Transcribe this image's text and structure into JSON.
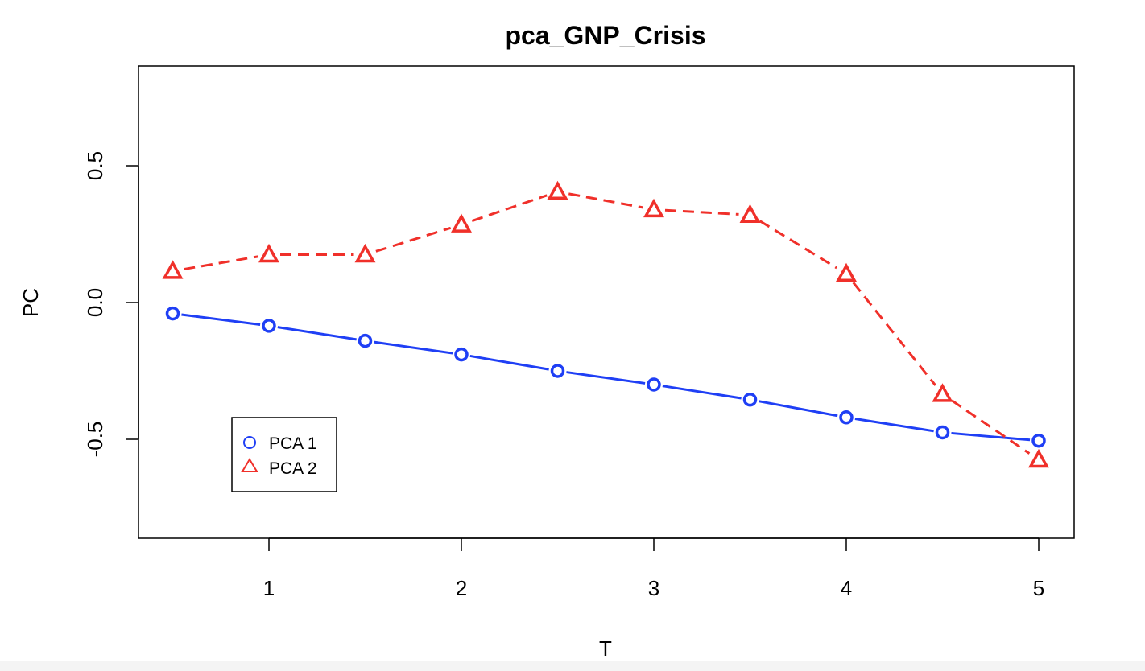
{
  "chart_data": {
    "type": "line",
    "title": "pca_GNP_Crisis",
    "xlabel": "T",
    "ylabel": "PC",
    "xlim": [
      0.5,
      5
    ],
    "ylim": [
      -0.87,
      0.87
    ],
    "x_ticks": [
      "1",
      "2",
      "3",
      "4",
      "5"
    ],
    "x_tick_values": [
      1,
      2,
      3,
      4,
      5
    ],
    "y_ticks": [
      "-0.5",
      "0.0",
      "0.5"
    ],
    "y_tick_values": [
      -0.5,
      0.0,
      0.5
    ],
    "x": [
      0.5,
      1.0,
      1.5,
      2.0,
      2.5,
      3.0,
      3.5,
      4.0,
      4.5,
      5.0
    ],
    "grid": false,
    "legend_position": "bottom-left",
    "series": [
      {
        "name": "PCA 1",
        "values": [
          -0.04,
          -0.085,
          -0.14,
          -0.19,
          -0.25,
          -0.3,
          -0.355,
          -0.42,
          -0.475,
          -0.505
        ],
        "color": "#1f3ff5",
        "marker": "circle",
        "line_style": "solid"
      },
      {
        "name": "PCA 2",
        "values": [
          0.115,
          0.175,
          0.175,
          0.285,
          0.405,
          0.34,
          0.32,
          0.105,
          -0.335,
          -0.575
        ],
        "color": "#f0302a",
        "marker": "triangle",
        "line_style": "dashed"
      }
    ]
  }
}
